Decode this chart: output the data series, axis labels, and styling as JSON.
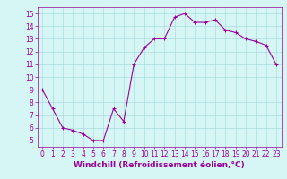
{
  "x": [
    0,
    1,
    2,
    3,
    4,
    5,
    6,
    7,
    8,
    9,
    10,
    11,
    12,
    13,
    14,
    15,
    16,
    17,
    18,
    19,
    20,
    21,
    22,
    23
  ],
  "y": [
    9,
    7.5,
    6,
    5.8,
    5.5,
    5,
    5,
    7.5,
    6.5,
    11,
    12.3,
    13,
    13,
    14.7,
    15,
    14.3,
    14.3,
    14.5,
    13.7,
    13.5,
    13,
    12.8,
    12.5,
    11
  ],
  "line_color": "#990099",
  "marker": "+",
  "bg_color": "#d6f5f5",
  "grid_color": "#aadddd",
  "xlabel": "Windchill (Refroidissement éolien,°C)",
  "xlabel_color": "#990099",
  "xlim": [
    -0.5,
    23.5
  ],
  "ylim": [
    4.5,
    15.5
  ],
  "yticks": [
    5,
    6,
    7,
    8,
    9,
    10,
    11,
    12,
    13,
    14,
    15
  ],
  "xticks": [
    0,
    1,
    2,
    3,
    4,
    5,
    6,
    7,
    8,
    9,
    10,
    11,
    12,
    13,
    14,
    15,
    16,
    17,
    18,
    19,
    20,
    21,
    22,
    23
  ],
  "tick_color": "#990099",
  "tick_fontsize": 5.5,
  "xlabel_fontsize": 6.5,
  "linewidth": 0.8,
  "markersize": 2.5,
  "markeredgewidth": 0.8
}
